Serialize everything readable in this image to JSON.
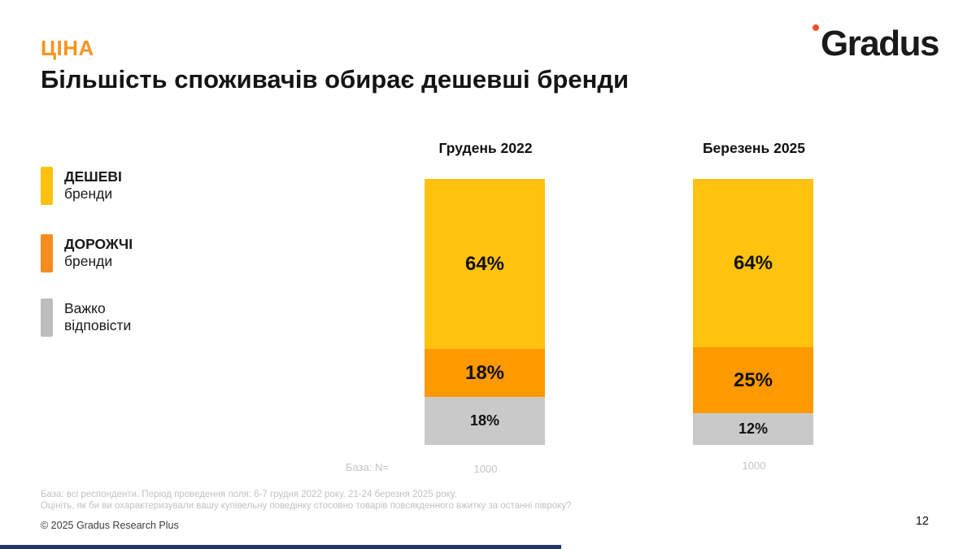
{
  "slide": {
    "kicker": "ЦІНА",
    "title": "Більшість споживачів обирає дешевші бренди",
    "page_number": "12",
    "copyright": "© 2025 Gradus Research Plus",
    "footnote_line1": "База: всі респонденти. Період проведення поля: 6-7 грудня 2022 року. 21-24 березня 2025 року.",
    "footnote_line2": "Оцініть, як би ви охарактеризували вашу купівельну поведінку стосовно товарів повсякденного вжитку за останні півроку?",
    "base_label": "База: N="
  },
  "logo": {
    "text": "Gradus",
    "ring_color": "#F04F24"
  },
  "colors": {
    "accent_orange": "#F7941E",
    "bar_yellow": "#FFC20E",
    "bar_orange": "#FF9900",
    "bar_gray": "#C9C9C9",
    "footer_navy": "#1F3864"
  },
  "legend": {
    "items": [
      {
        "label_bold": "ДЕШЕВІ",
        "label_rest": " бренди",
        "color": "#FFC20E"
      },
      {
        "label_bold": "ДОРОЖЧІ",
        "label_rest": " бренди",
        "color": "#F68B1F"
      },
      {
        "label_bold": "",
        "label_rest": "Важко відповісти",
        "color": "#BDBDBD"
      }
    ]
  },
  "chart_data": {
    "type": "bar",
    "stacked": true,
    "orientation": "vertical",
    "title": "",
    "categories": [
      "Грудень 2022",
      "Березень 2025"
    ],
    "series": [
      {
        "name": "ДЕШЕВІ бренди",
        "color": "#FFC20E",
        "values": [
          64,
          64
        ]
      },
      {
        "name": "ДОРОЖЧІ бренди",
        "color": "#FF9900",
        "values": [
          18,
          25
        ]
      },
      {
        "name": "Важко відповісти",
        "color": "#C9C9C9",
        "values": [
          18,
          12
        ]
      }
    ],
    "value_suffix": "%",
    "base_label": "База: N=",
    "base_n": [
      "1000",
      "1000"
    ],
    "ylim": [
      0,
      100
    ],
    "grid": false,
    "axes_visible": false,
    "legend_position": "left"
  }
}
